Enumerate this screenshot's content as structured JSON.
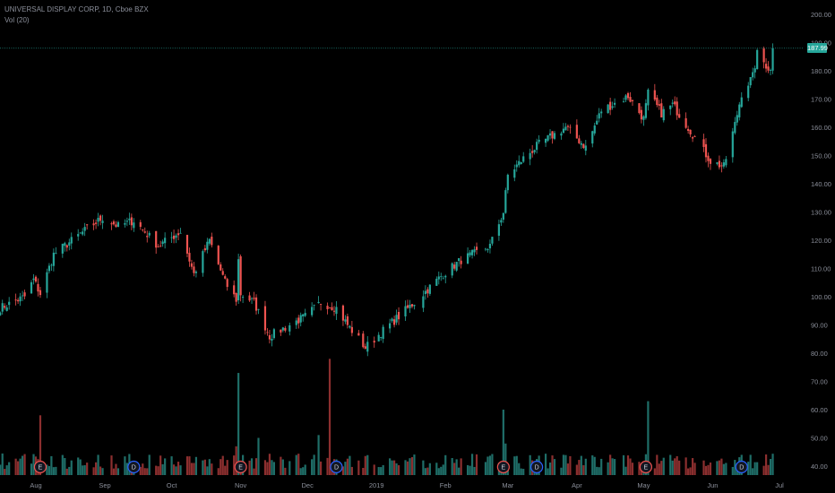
{
  "header": {
    "symbol_line": "UNIVERSAL DISPLAY CORP, 1D, Cboe BZX",
    "indicator": "Vol (20)"
  },
  "colors": {
    "up": "#26a69a",
    "down": "#ef5350",
    "up_volume": "#1f6e68",
    "down_volume": "#8c2f2f",
    "price_line": "#26a69a",
    "axis_text": "#8a8e99",
    "event_earnings": "#ef5350",
    "event_dividend": "#2962ff"
  },
  "chart_data": {
    "type": "candlestick",
    "title": "UNIVERSAL DISPLAY CORP, 1D, Cboe BZX",
    "last_price": "187.99",
    "x_ticks": [
      "Aug",
      "Sep",
      "Oct",
      "Nov",
      "Dec",
      "2019",
      "Feb",
      "Mar",
      "Apr",
      "May",
      "Jun",
      "Jul"
    ],
    "y_ticks": [
      "40.00",
      "50.00",
      "60.00",
      "70.00",
      "80.00",
      "90.00",
      "100.00",
      "110.00",
      "120.00",
      "130.00",
      "140.00",
      "150.00",
      "160.00",
      "170.00",
      "180.00",
      "190.00",
      "200.00"
    ],
    "ylim": [
      35,
      203
    ],
    "grid": false,
    "candles_from": "2018-07-16",
    "candles_to": "2019-06-28",
    "anchors": [
      [
        "2018-07-16",
        96
      ],
      [
        "2018-07-27",
        100
      ],
      [
        "2018-07-31",
        106
      ],
      [
        "2018-08-03",
        101
      ],
      [
        "2018-08-09",
        115
      ],
      [
        "2018-08-24",
        124
      ],
      [
        "2018-08-31",
        128
      ],
      [
        "2018-09-07",
        125
      ],
      [
        "2018-09-14",
        127
      ],
      [
        "2018-09-25",
        118
      ],
      [
        "2018-10-05",
        123
      ],
      [
        "2018-10-11",
        108
      ],
      [
        "2018-10-18",
        120
      ],
      [
        "2018-10-25",
        105
      ],
      [
        "2018-10-30",
        99
      ],
      [
        "2018-10-31",
        113
      ],
      [
        "2018-11-01",
        101
      ],
      [
        "2018-11-07",
        98
      ],
      [
        "2018-11-14",
        86
      ],
      [
        "2018-11-23",
        90
      ],
      [
        "2018-11-30",
        93
      ],
      [
        "2018-12-07",
        98
      ],
      [
        "2018-12-14",
        96
      ],
      [
        "2018-12-19",
        90
      ],
      [
        "2018-12-27",
        82
      ],
      [
        "2019-01-04",
        88
      ],
      [
        "2019-01-18",
        98
      ],
      [
        "2019-01-31",
        108
      ],
      [
        "2019-02-08",
        113
      ],
      [
        "2019-02-21",
        118
      ],
      [
        "2019-02-27",
        130
      ],
      [
        "2019-03-01",
        143
      ],
      [
        "2019-03-08",
        149
      ],
      [
        "2019-03-15",
        154
      ],
      [
        "2019-03-27",
        160
      ],
      [
        "2019-04-05",
        153
      ],
      [
        "2019-04-12",
        166
      ],
      [
        "2019-04-24",
        171
      ],
      [
        "2019-05-01",
        163
      ],
      [
        "2019-05-03",
        172
      ],
      [
        "2019-05-09",
        165
      ],
      [
        "2019-05-14",
        168
      ],
      [
        "2019-05-21",
        160
      ],
      [
        "2019-05-31",
        148
      ],
      [
        "2019-06-06",
        146
      ],
      [
        "2019-06-11",
        161
      ],
      [
        "2019-06-14",
        172
      ],
      [
        "2019-06-19",
        178
      ],
      [
        "2019-06-21",
        186
      ],
      [
        "2019-06-27",
        180
      ],
      [
        "2019-06-28",
        187.99
      ]
    ],
    "volume_spikes": [
      [
        "2018-08-03",
        58
      ],
      [
        "2018-10-31",
        73
      ],
      [
        "2018-10-30",
        47
      ],
      [
        "2018-11-09",
        50
      ],
      [
        "2018-12-06",
        51
      ],
      [
        "2018-12-11",
        78
      ],
      [
        "2019-02-27",
        60
      ],
      [
        "2019-02-28",
        48
      ],
      [
        "2019-05-03",
        63
      ]
    ],
    "events": [
      {
        "date": "2018-08-03",
        "label": "E"
      },
      {
        "date": "2018-09-14",
        "label": "D"
      },
      {
        "date": "2018-11-01",
        "label": "E"
      },
      {
        "date": "2018-12-14",
        "label": "D"
      },
      {
        "date": "2019-02-27",
        "label": "E"
      },
      {
        "date": "2019-03-14",
        "label": "D"
      },
      {
        "date": "2019-05-02",
        "label": "E"
      },
      {
        "date": "2019-06-14",
        "label": "D"
      }
    ]
  }
}
